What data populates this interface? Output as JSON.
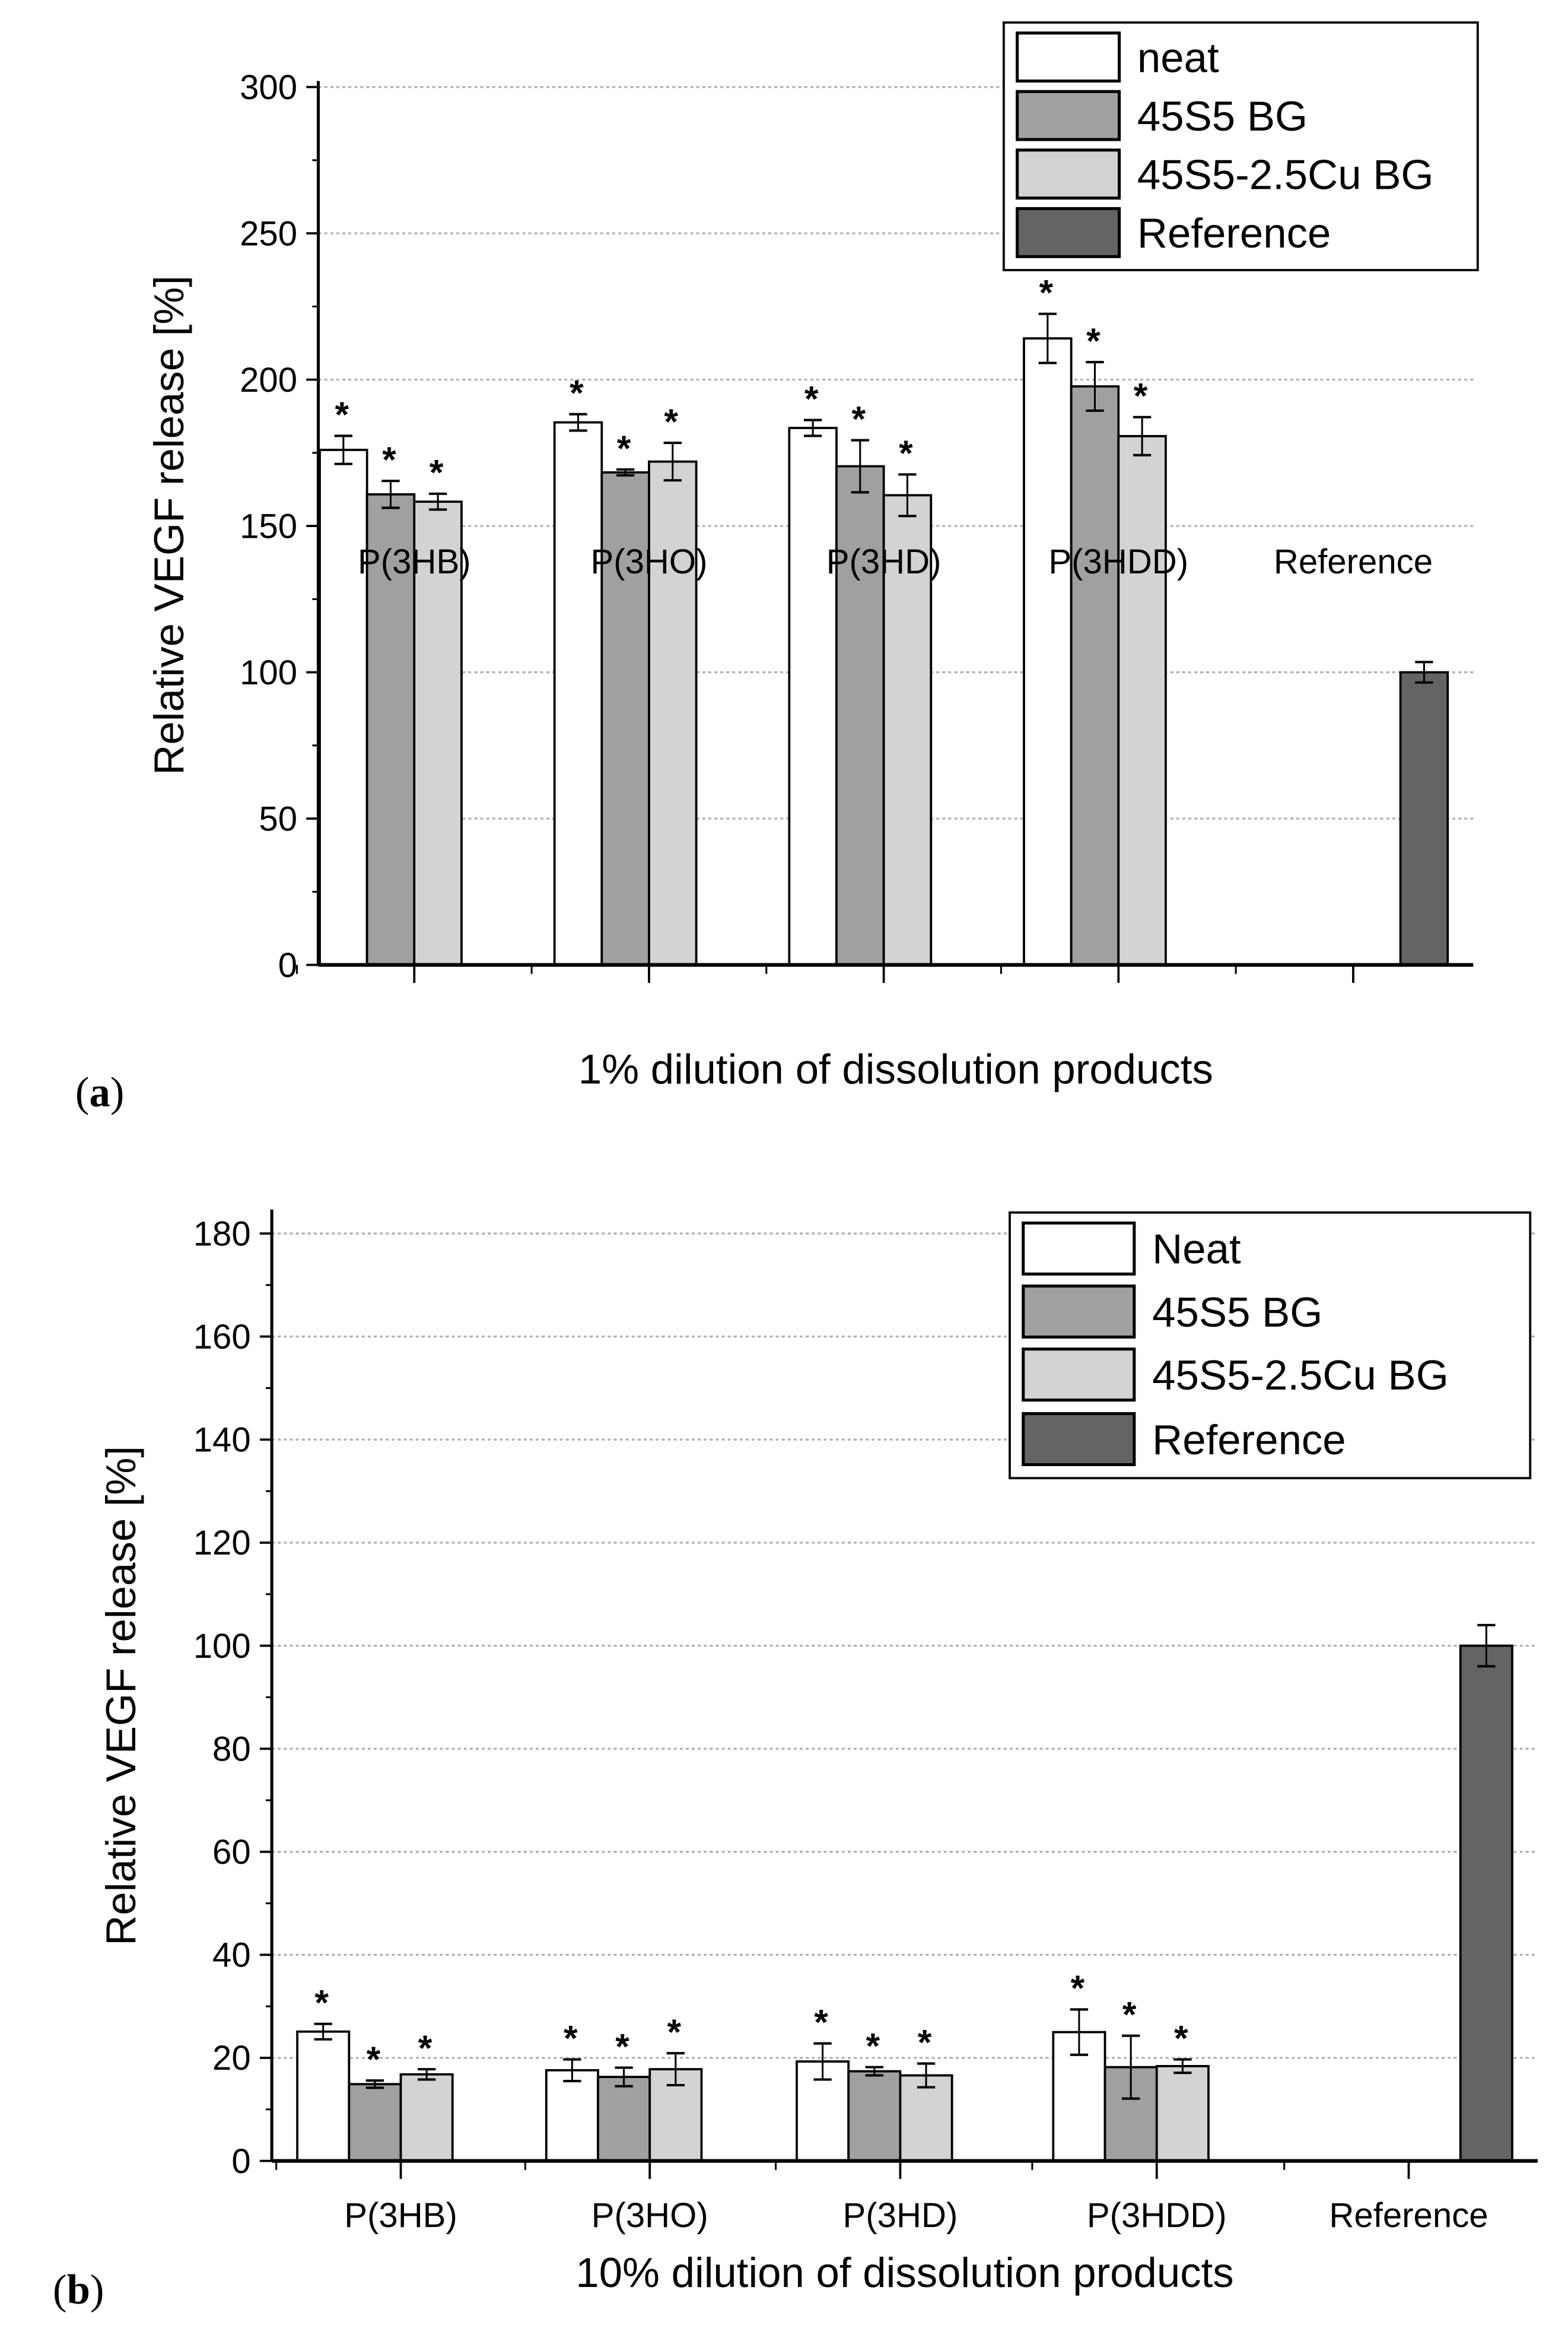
{
  "colors": {
    "neat": "#ffffff",
    "45S5 BG": "#a0a0a0",
    "45S5-2.5Cu BG": "#d3d3d3",
    "Reference": "#646464",
    "grid": "#b0b0b0"
  },
  "chart_data": [
    {
      "type": "bar",
      "panel_label": "(a)",
      "panel_letter": "a",
      "xlabel": "1% dilution of dissolution products",
      "ylabel": "Relative VEGF release [%]",
      "ylim": [
        0,
        300
      ],
      "yticks": [
        0,
        50,
        100,
        150,
        200,
        250,
        300
      ],
      "grid": true,
      "legend_position": "top-right",
      "categories": [
        "P(3HB)",
        "P(3HO)",
        "P(3HD)",
        "P(3HDD)",
        "Reference"
      ],
      "series": [
        {
          "name": "neat",
          "values": [
            176,
            185.4,
            183.5,
            214.1,
            null
          ],
          "errors": [
            4.8,
            2.8,
            2.7,
            8.4,
            null
          ],
          "significant": [
            true,
            true,
            true,
            true,
            false
          ]
        },
        {
          "name": "45S5 BG",
          "values": [
            160.8,
            168.3,
            170.4,
            197.7,
            null
          ],
          "errors": [
            4.6,
            1.0,
            8.9,
            8.3,
            null
          ],
          "significant": [
            true,
            true,
            true,
            true,
            false
          ]
        },
        {
          "name": "45S5-2.5Cu BG",
          "values": [
            158.3,
            172.0,
            160.5,
            180.7,
            null
          ],
          "errors": [
            2.7,
            6.4,
            7.1,
            6.5,
            null
          ],
          "significant": [
            true,
            true,
            true,
            true,
            false
          ]
        },
        {
          "name": "Reference",
          "values": [
            null,
            null,
            null,
            null,
            100
          ],
          "errors": [
            null,
            null,
            null,
            null,
            3.5
          ],
          "significant": [
            false,
            false,
            false,
            false,
            false
          ]
        }
      ],
      "significance_marker": "*"
    },
    {
      "type": "bar",
      "panel_label": "(b)",
      "panel_letter": "b",
      "xlabel": "10% dilution of dissolution products",
      "ylabel": "Relative VEGF release [%]",
      "ylim": [
        0,
        185
      ],
      "yticks": [
        0,
        20,
        40,
        60,
        80,
        100,
        120,
        140,
        160,
        180
      ],
      "grid": true,
      "legend_position": "top-right",
      "categories": [
        "P(3HB)",
        "P(3HO)",
        "P(3HD)",
        "P(3HDD)",
        "Reference"
      ],
      "series": [
        {
          "name": "Neat",
          "values": [
            25.1,
            17.6,
            19.3,
            25.0,
            null
          ],
          "errors": [
            1.5,
            2.1,
            3.5,
            4.4,
            null
          ],
          "significant": [
            true,
            true,
            true,
            true,
            false
          ]
        },
        {
          "name": "45S5 BG",
          "values": [
            14.9,
            16.3,
            17.4,
            18.2,
            null
          ],
          "errors": [
            0.7,
            1.8,
            0.8,
            6.1,
            null
          ],
          "significant": [
            true,
            true,
            true,
            true,
            false
          ]
        },
        {
          "name": "45S5-2.5Cu BG",
          "values": [
            16.8,
            17.8,
            16.6,
            18.4,
            null
          ],
          "errors": [
            1.0,
            3.1,
            2.3,
            1.3,
            null
          ],
          "significant": [
            true,
            true,
            true,
            true,
            false
          ]
        },
        {
          "name": "Reference",
          "values": [
            null,
            null,
            null,
            null,
            100
          ],
          "errors": [
            null,
            null,
            null,
            null,
            4.0
          ],
          "significant": [
            false,
            false,
            false,
            false,
            false
          ]
        }
      ],
      "significance_marker": "*"
    }
  ]
}
